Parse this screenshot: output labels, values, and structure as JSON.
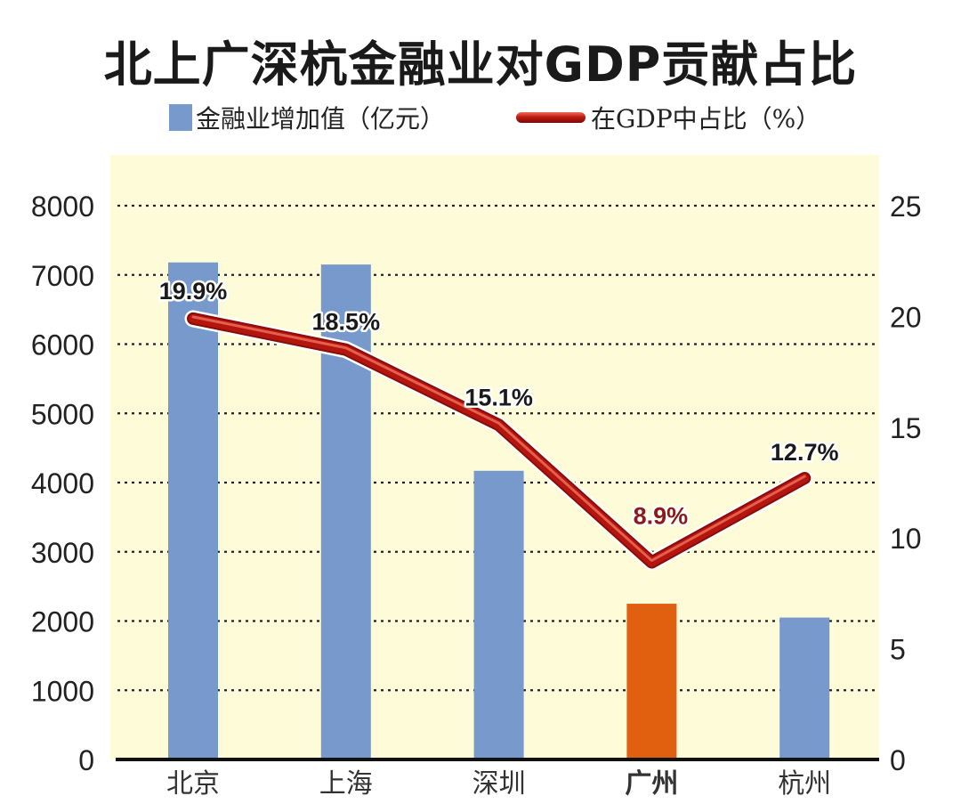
{
  "chart_data": {
    "type": "bar",
    "title": "北上广深杭金融业对GDP贡献占比",
    "categories": [
      "北京",
      "上海",
      "深圳",
      "广州",
      "杭州"
    ],
    "highlight_category": "广州",
    "series": [
      {
        "name": "金融业增加值（亿元）",
        "type": "bar",
        "axis": "left",
        "values": [
          7180,
          7150,
          4170,
          2250,
          2050
        ]
      },
      {
        "name": "在GDP中占比（%）",
        "type": "line",
        "axis": "right",
        "values": [
          19.9,
          18.5,
          15.1,
          8.9,
          12.7
        ],
        "labels": [
          "19.9%",
          "18.5%",
          "15.1%",
          "8.9%",
          "12.7%"
        ]
      }
    ],
    "y_left": {
      "ylim": [
        0,
        8000
      ],
      "ticks": [
        0,
        1000,
        2000,
        3000,
        4000,
        5000,
        6000,
        7000,
        8000
      ]
    },
    "y_right": {
      "ylim": [
        0,
        25
      ],
      "ticks": [
        0,
        5,
        10,
        15,
        20,
        25
      ]
    },
    "xlabel": "",
    "ylabel": "",
    "grid": "horizontal dotted",
    "legend_position": "top-center"
  },
  "legend": {
    "bar_label": "金融业增加值（亿元）",
    "line_label": "在GDP中占比（%）"
  },
  "colors": {
    "bar": "#7899cc",
    "bar_highlight": "#e0600f",
    "line": "#b3160f",
    "plot_bg": "#fefbd8",
    "label_default": "#1a1a1a",
    "label_highlight": "#8b1a1a",
    "category_highlight": "#e0600f"
  }
}
